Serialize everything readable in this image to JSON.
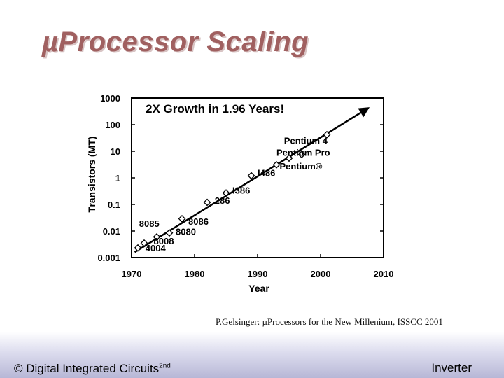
{
  "slide": {
    "title": "µProcessor Scaling",
    "citation": "P.Gelsinger: µProcessors for the New Millenium, ISSCC 2001"
  },
  "footer": {
    "left_text": "© Digital Integrated Circuits",
    "left_superscript": "2nd",
    "right_text": "Inverter"
  },
  "chart_data": {
    "type": "scatter",
    "title": "2X Growth in 1.96 Years!",
    "xlabel": "Year",
    "ylabel": "Transistors (MT)",
    "xlim": [
      1970,
      2010
    ],
    "ylim": [
      0.001,
      1000
    ],
    "yscale": "log",
    "x_ticks": [
      "1970",
      "1980",
      "1990",
      "2000",
      "2010"
    ],
    "y_ticks": [
      "1000",
      "100",
      "10",
      "1",
      "0.1",
      "0.01",
      "0.001"
    ],
    "points": [
      {
        "x": 1971,
        "y": 0.0023
      },
      {
        "x": 1972,
        "y": 0.0035
      },
      {
        "x": 1974,
        "y": 0.006
      },
      {
        "x": 1976,
        "y": 0.0085
      },
      {
        "x": 1978,
        "y": 0.029
      },
      {
        "x": 1982,
        "y": 0.12
      },
      {
        "x": 1985,
        "y": 0.27
      },
      {
        "x": 1989,
        "y": 1.2
      },
      {
        "x": 1993,
        "y": 3.1
      },
      {
        "x": 1995,
        "y": 5.5
      },
      {
        "x": 1997,
        "y": 7.5
      },
      {
        "x": 2001,
        "y": 42
      }
    ],
    "annotations": [
      {
        "text": "4004",
        "x": 1972.2,
        "y": 0.0017
      },
      {
        "text": "8008",
        "x": 1973.5,
        "y": 0.0032
      },
      {
        "text": "8080",
        "x": 1977.0,
        "y": 0.0071
      },
      {
        "text": "8085",
        "x": 1971.2,
        "y": 0.0145
      },
      {
        "text": "8086",
        "x": 1979.0,
        "y": 0.0175
      },
      {
        "text": "286",
        "x": 1983.2,
        "y": 0.105
      },
      {
        "text": "I386",
        "x": 1986.0,
        "y": 0.255
      },
      {
        "text": "I486",
        "x": 1990.0,
        "y": 1.15
      },
      {
        "text": "Pentium®",
        "x": 1993.5,
        "y": 2.1
      },
      {
        "text": "Pentium Pro",
        "x": 1993.0,
        "y": 6.8
      },
      {
        "text": "Pentium 4",
        "x": 1994.2,
        "y": 19
      }
    ],
    "trend_line": {
      "start": {
        "x": 1970.5,
        "y": 0.0016
      },
      "end": {
        "x": 2007.5,
        "y": 410
      }
    }
  }
}
